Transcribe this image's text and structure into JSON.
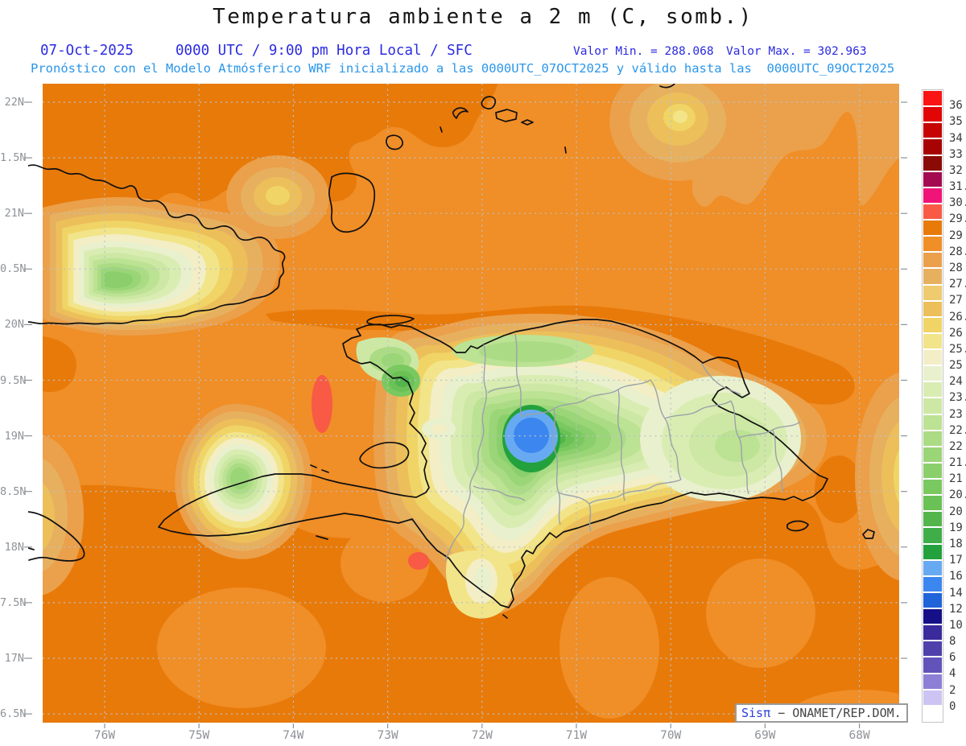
{
  "header": {
    "title": "Temperatura ambiente a 2 m (C, somb.)",
    "date": "07-Oct-2025",
    "time_info": "0000 UTC / 9:00 pm Hora Local / SFC",
    "min_label": "Valor Min. = 288.068",
    "max_label": "Valor Max. = 302.963",
    "forecast_line": "Pronóstico con el Modelo Atmósferico WRF inicializado a las 0000UTC_07OCT2025 y válido hasta las  0000UTC_09OCT2025"
  },
  "axes": {
    "lat_labels": [
      "22N",
      "1.5N",
      "21N",
      "0.5N",
      "20N",
      "9.5N",
      "19N",
      "8.5N",
      "18N",
      "7.5N",
      "17N",
      "6.5N"
    ],
    "lon_labels": [
      "76W",
      "75W",
      "74W",
      "73W",
      "72W",
      "71W",
      "70W",
      "69W",
      "68W"
    ]
  },
  "colorbar": {
    "labels": [
      "36",
      "35",
      "34",
      "33",
      "32",
      "31.5",
      "30.7",
      "29.7",
      "29",
      "28.5",
      "28",
      "27.5",
      "27",
      "26.5",
      "26",
      "25.5",
      "25",
      "24",
      "23.5",
      "23",
      "22.5",
      "22",
      "21.5",
      "21",
      "20.5",
      "20",
      "19",
      "18",
      "17",
      "16",
      "14",
      "12",
      "10",
      "8",
      "6",
      "4",
      "2",
      "0"
    ],
    "colors": [
      "#fa1414",
      "#e10505",
      "#c60404",
      "#a80303",
      "#8a0a05",
      "#a40a50",
      "#f01478",
      "#f85a46",
      "#e87a0a",
      "#f08e27",
      "#eba04b",
      "#e7b05f",
      "#edcb6e",
      "#ecbf5a",
      "#f0d466",
      "#f2e489",
      "#f3eec6",
      "#e9f0cd",
      "#d9edb3",
      "#cde8a4",
      "#bce293",
      "#abdc85",
      "#9ad577",
      "#8bcf6c",
      "#7ac860",
      "#6ac155",
      "#53b54c",
      "#3fae49",
      "#22a13c",
      "#68aaf1",
      "#3c86ef",
      "#2064da",
      "#150f88",
      "#3a2b9d",
      "#4f40ac",
      "#6253bb",
      "#8d7ed6",
      "#cdc4f3",
      "#ffffff"
    ]
  },
  "map": {
    "value_min": "288.068",
    "value_max": "302.963",
    "sea_base_color": "#f08e27",
    "sea_warm_color": "#e87a0a",
    "cold_core_colors": [
      "#68aaf1",
      "#3c86ef"
    ],
    "hot_spot_color": "#f85a46"
  },
  "attribution": {
    "brand": "Sisπ",
    "text": " − ONAMET/REP.DOM."
  }
}
